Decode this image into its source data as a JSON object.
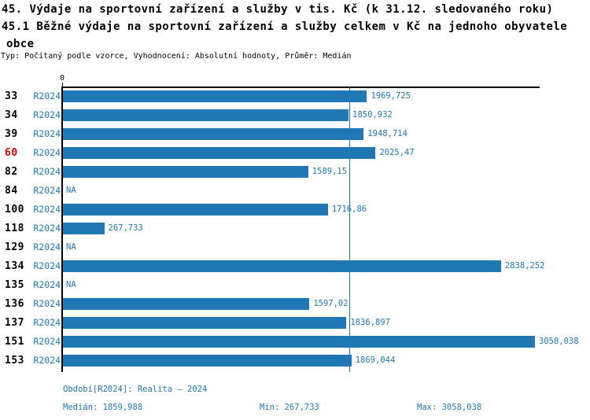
{
  "header": {
    "title_line1": "45. Výdaje na sportovní zařízení a služby v tis. Kč (k 31.12. sledovaného roku)",
    "title_line2": "45.1 Běžné výdaje na sportovní zařízení a služby celkem v Kč na jednoho obyvatele",
    "title_line3": "obce",
    "meta": "Typ: Počítaný podle vzorce, Vyhodnocení: Absolutní hodnoty, Průměr: Medián"
  },
  "chart_data": {
    "type": "bar",
    "orientation": "horizontal",
    "title": "45.1 Běžné výdaje na sportovní zařízení a služby celkem v Kč na jednoho obyvatele obce",
    "period_label": "R2024",
    "categories": [
      "33",
      "34",
      "39",
      "60",
      "82",
      "84",
      "100",
      "118",
      "129",
      "134",
      "135",
      "136",
      "137",
      "151",
      "153"
    ],
    "values": [
      1969.725,
      1850.932,
      1948.714,
      2025.47,
      1589.15,
      null,
      1716.86,
      267.733,
      null,
      2838.252,
      null,
      1597.02,
      1836.897,
      3058.038,
      1869.044
    ],
    "value_labels": [
      "1969,725",
      "1850,932",
      "1948,714",
      "2025,47",
      "1589,15",
      "NA",
      "1716,86",
      "267,733",
      "NA",
      "2838,252",
      "NA",
      "1597,02",
      "1836,897",
      "3058,038",
      "1869,044"
    ],
    "na_label": "NA",
    "highlighted_category": "60",
    "median_value": 1859.988,
    "axis": {
      "zero_label": "0",
      "xlim": [
        0,
        3058.038
      ]
    },
    "grid": false,
    "legend": "none",
    "colors": {
      "bar": "#1f77b4",
      "label_blue": "#1f77b4",
      "median_line": "#1f77b4",
      "highlight_red": "#dd0000",
      "axis_black": "#000000"
    }
  },
  "footer": {
    "period": "Období[R2024]: Realita – 2024",
    "median": "Medián: 1859,988",
    "min": "Min: 267,733",
    "max": "Max: 3058,038"
  }
}
